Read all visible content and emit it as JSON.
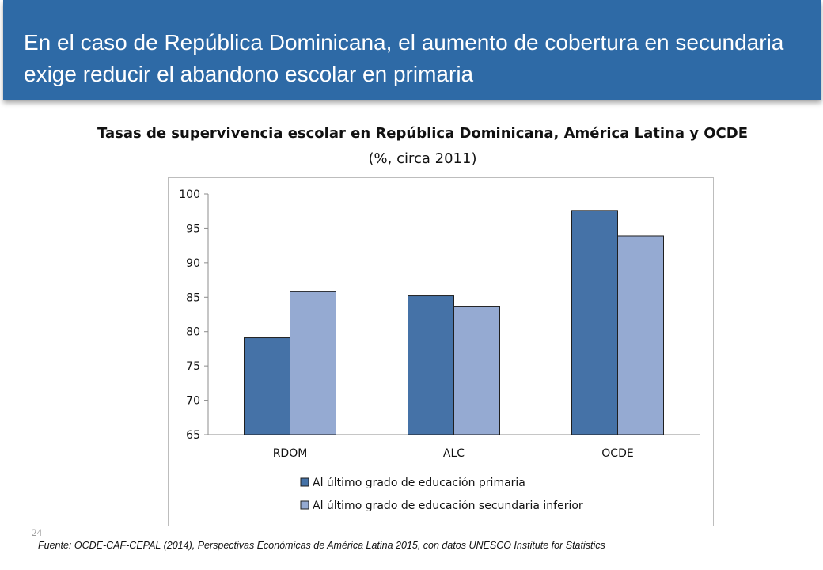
{
  "header": {
    "title": "En el caso de República Dominicana, el aumento de cobertura en secundaria exige reducir el abandono escolar en primaria"
  },
  "chart_data": {
    "type": "bar",
    "title": "Tasas de supervivencia escolar en República Dominicana, América Latina y OCDE",
    "subtitle": "(%, circa 2011)",
    "categories": [
      "RDOM",
      "ALC",
      "OCDE"
    ],
    "series": [
      {
        "name": "Al último grado de educación primaria",
        "values": [
          79.1,
          85.2,
          97.6
        ],
        "color": "#4572a7"
      },
      {
        "name": "Al último grado de educación secundaria inferior",
        "values": [
          85.8,
          83.6,
          93.9
        ],
        "color": "#95aad2"
      }
    ],
    "ylim": [
      65,
      100
    ],
    "yticks": [
      65,
      70,
      75,
      80,
      85,
      90,
      95,
      100
    ],
    "xlabel": "",
    "ylabel": "",
    "grid": false,
    "legend": "bottom"
  },
  "footer": {
    "page_number": "24",
    "source": "Fuente: OCDE-CAF-CEPAL (2014), Perspectivas Económicas de América Latina 2015, con datos UNESCO Institute for Statistics"
  }
}
